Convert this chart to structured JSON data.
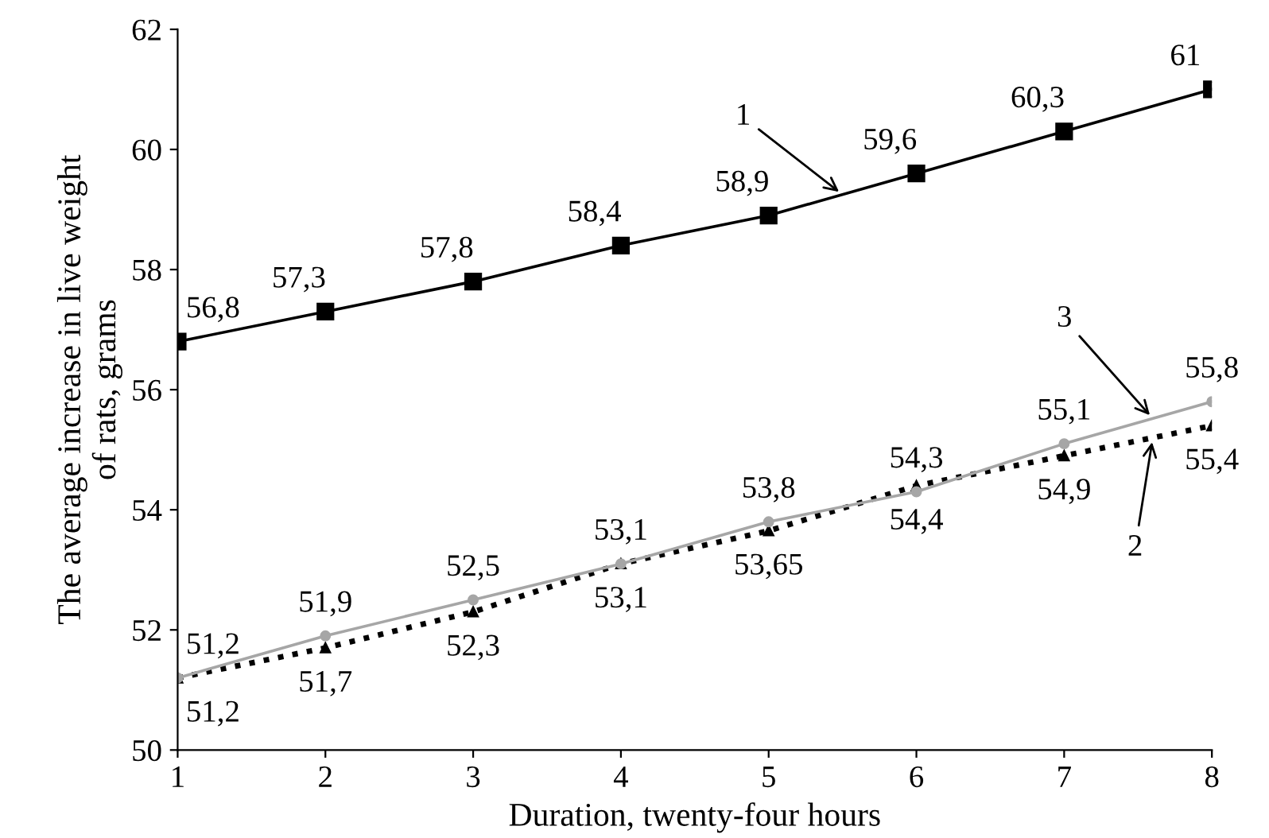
{
  "chart_data": {
    "type": "line",
    "xlabel": "Duration, twenty-four hours",
    "ylabel": "The average increase in live weight\nof rats, grams",
    "x": [
      1,
      2,
      3,
      4,
      5,
      6,
      7,
      8
    ],
    "xlim": [
      1,
      8
    ],
    "xticks": [
      1,
      2,
      3,
      4,
      5,
      6,
      7,
      8
    ],
    "ylim": [
      50,
      62
    ],
    "yticks": [
      50,
      52,
      54,
      56,
      58,
      60,
      62
    ],
    "grid": false,
    "series": [
      {
        "name": "1",
        "color": "#000000",
        "marker": "square",
        "line_style": "solid",
        "values": [
          56.8,
          57.3,
          57.8,
          58.4,
          58.9,
          59.6,
          60.3,
          61
        ],
        "value_labels": [
          "56,8",
          "57,3",
          "57,8",
          "58,4",
          "58,9",
          "59,6",
          "60,3",
          "61"
        ]
      },
      {
        "name": "2",
        "color": "#000000",
        "marker": "triangle",
        "line_style": "dotted",
        "values": [
          51.2,
          51.7,
          52.3,
          53.1,
          53.65,
          54.4,
          54.9,
          55.4
        ],
        "value_labels": [
          "51,2",
          "51,7",
          "52,3",
          "53,1",
          "53,65",
          "54,4",
          "54,9",
          "55,4"
        ]
      },
      {
        "name": "3",
        "color": "#a6a6a6",
        "marker": "circle",
        "line_style": "solid",
        "values": [
          51.2,
          51.9,
          52.5,
          53.1,
          53.8,
          54.3,
          55.1,
          55.8
        ],
        "value_labels": [
          "51,2",
          "51,9",
          "52,5",
          "53,1",
          "53,8",
          "54,3",
          "55,1",
          "55,8"
        ]
      }
    ]
  }
}
